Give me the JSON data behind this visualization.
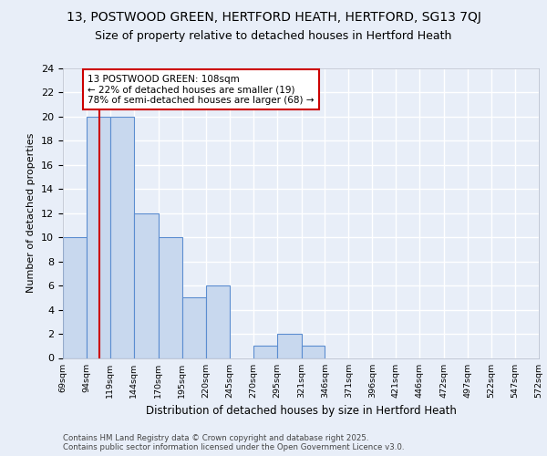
{
  "title_line1": "13, POSTWOOD GREEN, HERTFORD HEATH, HERTFORD, SG13 7QJ",
  "title_line2": "Size of property relative to detached houses in Hertford Heath",
  "xlabel": "Distribution of detached houses by size in Hertford Heath",
  "ylabel": "Number of detached properties",
  "bin_edges": [
    69,
    94,
    119,
    144,
    170,
    195,
    220,
    245,
    270,
    295,
    321,
    346,
    371,
    396,
    421,
    446,
    472,
    497,
    522,
    547,
    572
  ],
  "counts": [
    10,
    20,
    20,
    12,
    10,
    5,
    6,
    0,
    1,
    2,
    1,
    0,
    0,
    0,
    0,
    0,
    0,
    0,
    0,
    0
  ],
  "bar_color": "#c8d8ee",
  "bar_edge_color": "#5b8dd0",
  "property_size": 108,
  "vline_color": "#cc0000",
  "ylim": [
    0,
    24
  ],
  "yticks": [
    0,
    2,
    4,
    6,
    8,
    10,
    12,
    14,
    16,
    18,
    20,
    22,
    24
  ],
  "annotation_text": "13 POSTWOOD GREEN: 108sqm\n← 22% of detached houses are smaller (19)\n78% of semi-detached houses are larger (68) →",
  "annotation_box_color": "#ffffff",
  "annotation_box_edge": "#cc0000",
  "tick_labels": [
    "69sqm",
    "94sqm",
    "119sqm",
    "144sqm",
    "170sqm",
    "195sqm",
    "220sqm",
    "245sqm",
    "270sqm",
    "295sqm",
    "321sqm",
    "346sqm",
    "371sqm",
    "396sqm",
    "421sqm",
    "446sqm",
    "472sqm",
    "497sqm",
    "522sqm",
    "547sqm",
    "572sqm"
  ],
  "footer_text": "Contains HM Land Registry data © Crown copyright and database right 2025.\nContains public sector information licensed under the Open Government Licence v3.0.",
  "background_color": "#e8eef8",
  "grid_color": "#ffffff",
  "title1_fontsize": 10,
  "title2_fontsize": 9
}
